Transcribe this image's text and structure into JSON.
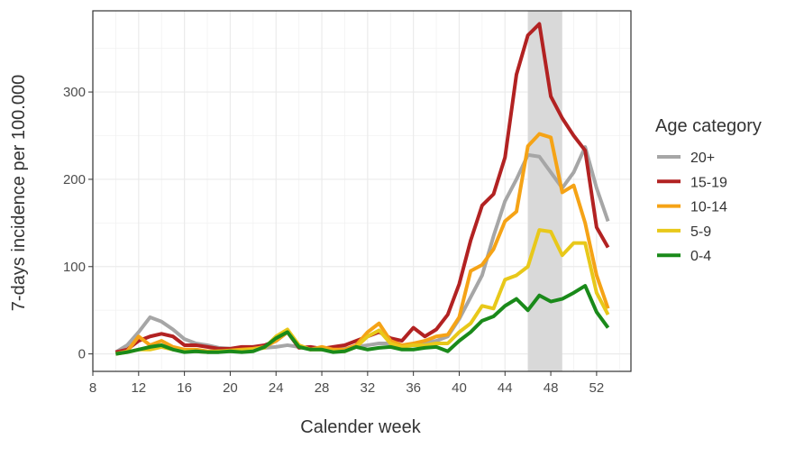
{
  "chart_data": {
    "type": "line",
    "x_label": "Calender week",
    "y_label": "7-days incidence per 100.000",
    "legend_title": "Age category",
    "legend_position": "right",
    "grid": true,
    "highlight": {
      "xmin": 46,
      "xmax": 49,
      "color": "#d9d9d9"
    },
    "x": [
      10,
      11,
      12,
      13,
      14,
      15,
      16,
      17,
      18,
      19,
      20,
      21,
      22,
      23,
      24,
      25,
      26,
      27,
      28,
      29,
      30,
      31,
      32,
      33,
      34,
      35,
      36,
      37,
      38,
      39,
      40,
      41,
      42,
      43,
      44,
      45,
      46,
      47,
      48,
      49,
      50,
      51,
      52,
      53
    ],
    "xlim": [
      8,
      55
    ],
    "xticks": [
      8,
      12,
      16,
      20,
      24,
      28,
      32,
      36,
      40,
      44,
      48,
      52
    ],
    "ylim": [
      -20,
      393
    ],
    "yticks": [
      0,
      100,
      200,
      300
    ],
    "series": [
      {
        "name": "20+",
        "color": "#a6a6a6",
        "values": [
          2,
          10,
          25,
          42,
          37,
          28,
          17,
          12,
          10,
          7,
          6,
          6,
          6,
          7,
          8,
          10,
          8,
          6,
          5,
          5,
          6,
          8,
          10,
          12,
          12,
          10,
          10,
          12,
          15,
          20,
          40,
          65,
          90,
          135,
          175,
          200,
          228,
          226,
          208,
          190,
          208,
          237,
          190,
          152
        ]
      },
      {
        "name": "15-19",
        "color": "#b22222",
        "values": [
          2,
          5,
          15,
          20,
          23,
          20,
          10,
          10,
          8,
          6,
          6,
          8,
          8,
          10,
          15,
          25,
          7,
          8,
          6,
          8,
          10,
          15,
          20,
          25,
          18,
          15,
          30,
          20,
          28,
          45,
          80,
          130,
          170,
          183,
          225,
          320,
          365,
          378,
          295,
          270,
          250,
          233,
          145,
          122
        ]
      },
      {
        "name": "10-14",
        "color": "#f5a316",
        "values": [
          0,
          3,
          20,
          10,
          15,
          8,
          5,
          5,
          3,
          3,
          4,
          5,
          6,
          8,
          15,
          25,
          10,
          5,
          8,
          5,
          5,
          10,
          25,
          35,
          15,
          10,
          12,
          15,
          20,
          22,
          42,
          95,
          102,
          120,
          152,
          163,
          238,
          252,
          248,
          185,
          193,
          150,
          90,
          52
        ]
      },
      {
        "name": "5-9",
        "color": "#e8c81a",
        "values": [
          0,
          2,
          5,
          5,
          8,
          5,
          3,
          3,
          2,
          3,
          3,
          4,
          5,
          7,
          20,
          28,
          10,
          5,
          5,
          3,
          3,
          8,
          20,
          27,
          12,
          8,
          10,
          10,
          12,
          12,
          25,
          35,
          55,
          52,
          85,
          90,
          100,
          142,
          140,
          113,
          127,
          127,
          70,
          45
        ]
      },
      {
        "name": "0-4",
        "color": "#1a8a1a",
        "values": [
          0,
          2,
          5,
          8,
          10,
          5,
          2,
          3,
          2,
          2,
          3,
          2,
          3,
          8,
          18,
          25,
          8,
          5,
          5,
          2,
          3,
          8,
          5,
          7,
          8,
          5,
          5,
          7,
          8,
          3,
          15,
          25,
          38,
          43,
          55,
          63,
          50,
          67,
          60,
          63,
          70,
          78,
          48,
          30
        ]
      }
    ]
  }
}
